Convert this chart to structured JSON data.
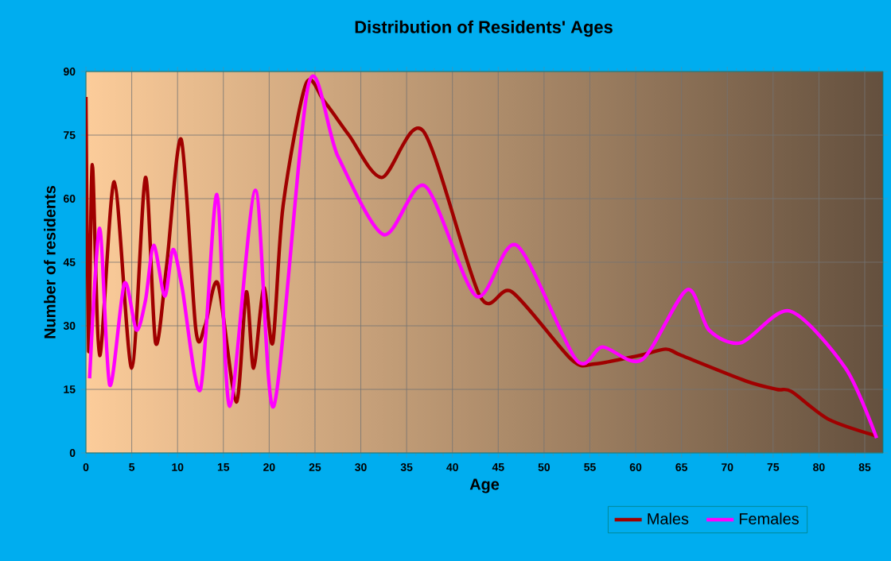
{
  "chart_data": {
    "type": "line",
    "title": "Distribution of Residents' Ages",
    "xlabel": "Age",
    "ylabel": "Number of residents",
    "xlim": [
      0,
      87
    ],
    "xticks": [
      0,
      5,
      10,
      15,
      20,
      25,
      30,
      35,
      40,
      45,
      50,
      55,
      60,
      65,
      70,
      75,
      80,
      85
    ],
    "ylim": [
      0,
      90
    ],
    "yticks": [
      0,
      15,
      30,
      45,
      60,
      75,
      90
    ],
    "grid": true,
    "legend": "bottom right",
    "marker": "none",
    "line_style": "solid",
    "series": [
      {
        "name": "Males",
        "color": "#a00000",
        "x": [
          0,
          0.3,
          0.7,
          1.5,
          3.1,
          5,
          6.5,
          7.6,
          8.8,
          10.4,
          12,
          13,
          14.4,
          16.4,
          17.5,
          18.3,
          19.4,
          20.4,
          21.5,
          24,
          26,
          28.7,
          32.3,
          36.8,
          43,
          46.5,
          53,
          55.5,
          60.4,
          63.3,
          65,
          72,
          75.4,
          77,
          81,
          86.3
        ],
        "values": [
          84,
          24,
          68,
          23,
          64,
          20,
          65,
          26,
          44,
          74,
          29,
          30,
          40,
          12,
          38,
          20,
          39,
          26,
          58,
          87,
          83,
          75,
          65,
          76,
          37,
          38,
          22,
          21,
          23,
          24.5,
          23,
          17,
          15,
          14.5,
          8,
          4
        ]
      },
      {
        "name": "Females",
        "color": "#ff00ff",
        "x": [
          0.4,
          1.5,
          2.6,
          4.2,
          5.5,
          6.5,
          7.4,
          8.6,
          9.5,
          10.5,
          12.5,
          14.3,
          15.7,
          18.5,
          20.5,
          24.3,
          27.5,
          32.5,
          37,
          42.6,
          47,
          53.5,
          56.4,
          60.7,
          65.6,
          68,
          71.5,
          76.8,
          82.9,
          86.3
        ],
        "values": [
          17.6,
          53,
          16,
          40,
          29,
          36,
          49,
          37,
          48,
          39,
          15,
          61,
          11,
          62,
          11,
          87,
          70,
          51.5,
          63,
          37,
          49,
          22,
          25,
          22,
          38.5,
          29,
          26,
          33.5,
          20,
          3.5
        ]
      }
    ]
  }
}
